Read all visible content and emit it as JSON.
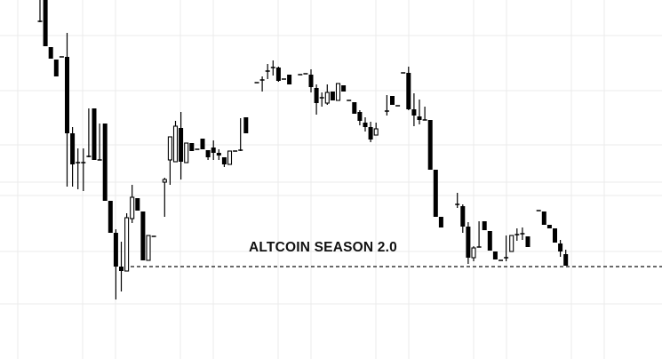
{
  "chart_data": {
    "type": "candlestick",
    "title": "",
    "xlabel": "",
    "ylabel": "",
    "grid": true,
    "ylim": [
      0,
      400
    ],
    "colors": {
      "bearish": "#000000",
      "bullish_fill": "#ffffff",
      "outline": "#000000",
      "grid": "#ebebeb",
      "reference_line": "#111111"
    },
    "candle_fields": [
      "t",
      "open",
      "high",
      "low",
      "close"
    ],
    "candles": [
      [
        0,
        376,
        400,
        375,
        376
      ],
      [
        1,
        400,
        400,
        348,
        348
      ],
      [
        2,
        347,
        347,
        334,
        334
      ],
      [
        3,
        333,
        333,
        314,
        314
      ],
      [
        4,
        336,
        336,
        336,
        336
      ],
      [
        5,
        336,
        363,
        190,
        250
      ],
      [
        6,
        250,
        257,
        190,
        215
      ],
      [
        7,
        217,
        233,
        187,
        217
      ],
      [
        8,
        217,
        233,
        185,
        217
      ],
      [
        9,
        223,
        278,
        223,
        224
      ],
      [
        10,
        278,
        278,
        220,
        220
      ],
      [
        11,
        220,
        261,
        220,
        220
      ],
      [
        12,
        261,
        261,
        174,
        174
      ],
      [
        13,
        174,
        174,
        138,
        138
      ],
      [
        14,
        138,
        142,
        63,
        100
      ],
      [
        15,
        100,
        128,
        72,
        95
      ],
      [
        16,
        95,
        160,
        95,
        155
      ],
      [
        17,
        154,
        192,
        149,
        178
      ],
      [
        18,
        177,
        177,
        163,
        163
      ],
      [
        19,
        162,
        162,
        107,
        107
      ],
      [
        20,
        107,
        135,
        107,
        135
      ],
      [
        21,
        134,
        134,
        134,
        134
      ],
      [
        23,
        195,
        200,
        156,
        198
      ],
      [
        24,
        220,
        246,
        192,
        246
      ],
      [
        25,
        218,
        264,
        218,
        258
      ],
      [
        26,
        256,
        274,
        198,
        218
      ],
      [
        27,
        217,
        239,
        217,
        239
      ],
      [
        28,
        239,
        239,
        230,
        230
      ],
      [
        29,
        232,
        232,
        232,
        232
      ],
      [
        30,
        244,
        244,
        232,
        232
      ],
      [
        31,
        231,
        231,
        220,
        223
      ],
      [
        32,
        234,
        242,
        220,
        228
      ],
      [
        33,
        228,
        232,
        220,
        225
      ],
      [
        34,
        223,
        223,
        212,
        215
      ],
      [
        35,
        215,
        230,
        215,
        230
      ],
      [
        36,
        230,
        230,
        230,
        230
      ],
      [
        37,
        230,
        267,
        230,
        231
      ],
      [
        38,
        268,
        268,
        250,
        250
      ],
      [
        40,
        307,
        307,
        307,
        307
      ],
      [
        41,
        310,
        314,
        297,
        310
      ],
      [
        42,
        319,
        328,
        311,
        320
      ],
      [
        43,
        323,
        332,
        315,
        324
      ],
      [
        44,
        324,
        325,
        308,
        309
      ],
      [
        45,
        311,
        311,
        311,
        311
      ],
      [
        46,
        316,
        316,
        305,
        305
      ],
      [
        48,
        316,
        316,
        316,
        316
      ],
      [
        49,
        317,
        317,
        317,
        317
      ],
      [
        50,
        316,
        322,
        296,
        302
      ],
      [
        51,
        301,
        305,
        271,
        284
      ],
      [
        52,
        290,
        296,
        280,
        290
      ],
      [
        53,
        284,
        305,
        282,
        296
      ],
      [
        54,
        297,
        297,
        287,
        287
      ],
      [
        55,
        287,
        306,
        287,
        306
      ],
      [
        56,
        304,
        304,
        297,
        297
      ],
      [
        57,
        287,
        287,
        287,
        287
      ],
      [
        58,
        285,
        285,
        272,
        272
      ],
      [
        59,
        274,
        276,
        259,
        264
      ],
      [
        60,
        262,
        268,
        252,
        257
      ],
      [
        61,
        257,
        263,
        240,
        243
      ],
      [
        62,
        248,
        262,
        248,
        255
      ],
      [
        64,
        275,
        293,
        270,
        275
      ],
      [
        65,
        292,
        292,
        282,
        282
      ],
      [
        66,
        281,
        281,
        281,
        281
      ],
      [
        67,
        318,
        318,
        318,
        318
      ],
      [
        68,
        318,
        325,
        276,
        277
      ],
      [
        69,
        277,
        295,
        258,
        270
      ],
      [
        70,
        269,
        288,
        260,
        265
      ],
      [
        71,
        265,
        280,
        265,
        265
      ],
      [
        72,
        265,
        265,
        209,
        209
      ],
      [
        73,
        209,
        209,
        156,
        156
      ],
      [
        74,
        156,
        156,
        144,
        144
      ],
      [
        77,
        170,
        183,
        166,
        170
      ],
      [
        78,
        168,
        170,
        138,
        145
      ],
      [
        79,
        145,
        150,
        103,
        110
      ],
      [
        80,
        110,
        123,
        106,
        121
      ],
      [
        81,
        122,
        151,
        122,
        122
      ],
      [
        82,
        151,
        151,
        141,
        141
      ],
      [
        83,
        140,
        140,
        118,
        118
      ],
      [
        84,
        117,
        117,
        108,
        108
      ],
      [
        85,
        107,
        107,
        107,
        107
      ],
      [
        86,
        110,
        135,
        106,
        110
      ],
      [
        87,
        117,
        135,
        117,
        135
      ],
      [
        88,
        136,
        143,
        129,
        136
      ],
      [
        89,
        137,
        144,
        130,
        136
      ],
      [
        90,
        134,
        134,
        122,
        122
      ],
      [
        92,
        163,
        163,
        163,
        163
      ],
      [
        93,
        162,
        162,
        147,
        147
      ],
      [
        94,
        147,
        147,
        143,
        143
      ],
      [
        95,
        143,
        143,
        127,
        127
      ],
      [
        96,
        126,
        130,
        111,
        117
      ],
      [
        97,
        114,
        119,
        101,
        101
      ]
    ],
    "reference_line": {
      "value": 100,
      "style": "dashed"
    },
    "annotations": [
      {
        "text": "ALTCOIN SEASON 2.0"
      }
    ]
  }
}
